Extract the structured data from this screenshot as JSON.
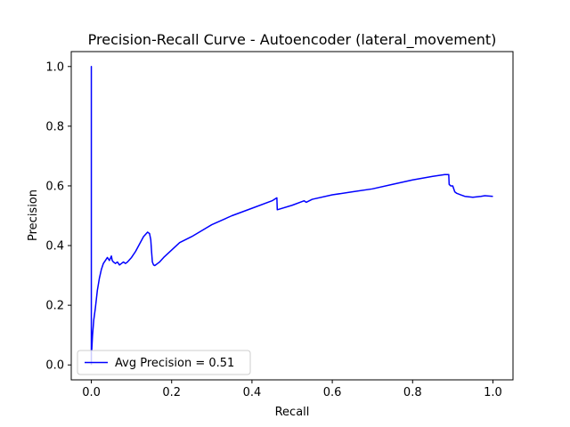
{
  "chart_data": {
    "type": "line",
    "title": "Precision-Recall Curve - Autoencoder (lateral_movement)",
    "xlabel": "Recall",
    "ylabel": "Precision",
    "xlim": [
      -0.05,
      1.05
    ],
    "ylim": [
      -0.05,
      1.05
    ],
    "xticks": [
      0.0,
      0.2,
      0.4,
      0.6,
      0.8,
      1.0
    ],
    "yticks": [
      0.0,
      0.2,
      0.4,
      0.6,
      0.8,
      1.0
    ],
    "xtick_labels": [
      "0.0",
      "0.2",
      "0.4",
      "0.6",
      "0.8",
      "1.0"
    ],
    "ytick_labels": [
      "0.0",
      "0.2",
      "0.4",
      "0.6",
      "0.8",
      "1.0"
    ],
    "grid": false,
    "legend_position": "lower-left",
    "series": [
      {
        "name": "Avg Precision = 0.51",
        "color": "#0000ff",
        "x": [
          0.0,
          0.0,
          0.0,
          0.001,
          0.003,
          0.006,
          0.01,
          0.015,
          0.02,
          0.025,
          0.03,
          0.035,
          0.04,
          0.045,
          0.05,
          0.052,
          0.055,
          0.06,
          0.065,
          0.07,
          0.075,
          0.08,
          0.085,
          0.09,
          0.1,
          0.11,
          0.12,
          0.13,
          0.14,
          0.145,
          0.148,
          0.15,
          0.152,
          0.155,
          0.158,
          0.16,
          0.165,
          0.17,
          0.18,
          0.2,
          0.22,
          0.25,
          0.3,
          0.35,
          0.4,
          0.45,
          0.462,
          0.463,
          0.5,
          0.53,
          0.535,
          0.55,
          0.6,
          0.65,
          0.7,
          0.75,
          0.8,
          0.85,
          0.88,
          0.89,
          0.891,
          0.895,
          0.9,
          0.905,
          0.91,
          0.92,
          0.93,
          0.95,
          0.97,
          0.98,
          1.0
        ],
        "y": [
          0.0,
          1.0,
          0.07,
          0.05,
          0.1,
          0.15,
          0.19,
          0.25,
          0.29,
          0.32,
          0.34,
          0.35,
          0.36,
          0.35,
          0.365,
          0.35,
          0.345,
          0.34,
          0.345,
          0.335,
          0.34,
          0.345,
          0.34,
          0.345,
          0.36,
          0.38,
          0.405,
          0.43,
          0.445,
          0.44,
          0.42,
          0.38,
          0.345,
          0.335,
          0.333,
          0.335,
          0.34,
          0.345,
          0.36,
          0.385,
          0.41,
          0.43,
          0.47,
          0.5,
          0.525,
          0.55,
          0.56,
          0.52,
          0.535,
          0.55,
          0.545,
          0.555,
          0.57,
          0.58,
          0.59,
          0.605,
          0.62,
          0.632,
          0.638,
          0.638,
          0.605,
          0.6,
          0.6,
          0.58,
          0.575,
          0.57,
          0.565,
          0.562,
          0.565,
          0.567,
          0.565
        ]
      }
    ]
  }
}
